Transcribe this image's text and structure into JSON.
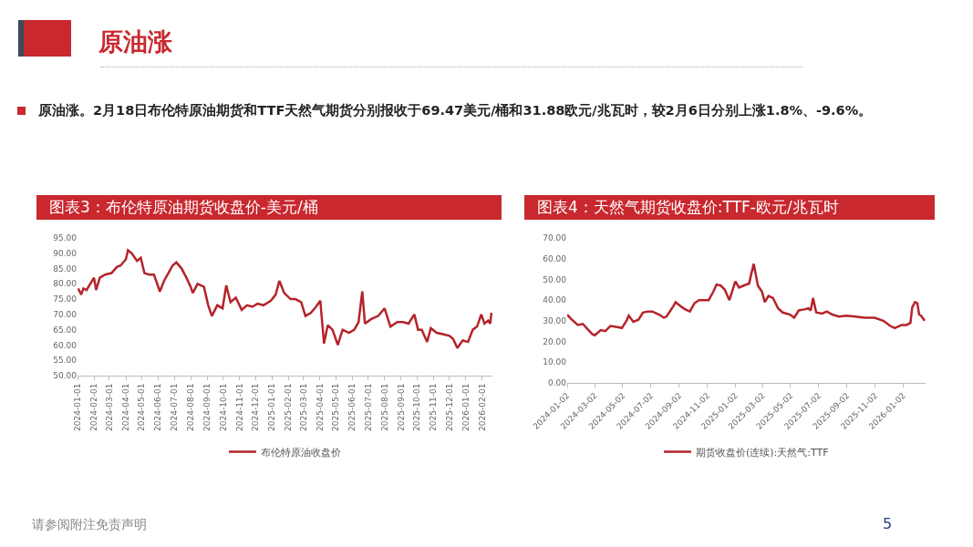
{
  "chart_data": [
    {
      "type": "line",
      "title": "图表3：布伦特原油期货收盘价-美元/桶",
      "x": [
        "2024-01-02",
        "2024-01-08",
        "2024-01-12",
        "2024-01-18",
        "2024-01-25",
        "2024-02-01",
        "2024-02-05",
        "2024-02-12",
        "2024-02-22",
        "2024-03-05",
        "2024-03-15",
        "2024-03-22",
        "2024-04-01",
        "2024-04-05",
        "2024-04-12",
        "2024-04-22",
        "2024-04-29",
        "2024-05-06",
        "2024-05-15",
        "2024-05-24",
        "2024-06-04",
        "2024-06-12",
        "2024-06-20",
        "2024-06-28",
        "2024-07-05",
        "2024-07-15",
        "2024-07-24",
        "2024-08-01",
        "2024-08-05",
        "2024-08-14",
        "2024-08-26",
        "2024-09-03",
        "2024-09-10",
        "2024-09-20",
        "2024-09-30",
        "2024-10-07",
        "2024-10-15",
        "2024-10-25",
        "2024-11-05",
        "2024-11-15",
        "2024-11-25",
        "2024-12-05",
        "2024-12-16",
        "2024-12-30",
        "2025-01-08",
        "2025-01-15",
        "2025-01-24",
        "2025-02-05",
        "2025-02-14",
        "2025-02-25",
        "2025-03-05",
        "2025-03-15",
        "2025-03-25",
        "2025-04-02",
        "2025-04-09",
        "2025-04-16",
        "2025-04-25",
        "2025-05-05",
        "2025-05-14",
        "2025-05-26",
        "2025-06-05",
        "2025-06-13",
        "2025-06-20",
        "2025-06-25",
        "2025-07-07",
        "2025-07-20",
        "2025-08-01",
        "2025-08-12",
        "2025-08-25",
        "2025-09-05",
        "2025-09-15",
        "2025-09-26",
        "2025-10-03",
        "2025-10-10",
        "2025-10-20",
        "2025-10-27",
        "2025-11-07",
        "2025-11-20",
        "2025-12-01",
        "2025-12-08",
        "2025-12-16",
        "2025-12-26",
        "2026-01-05",
        "2026-01-14",
        "2026-01-22",
        "2026-01-30",
        "2026-02-05",
        "2026-02-12",
        "2026-02-16",
        "2026-02-18"
      ],
      "series": [
        {
          "name": "布伦特原油收盘价",
          "color": "#b5232a",
          "values": [
            78.5,
            76.5,
            78.5,
            78,
            80,
            82,
            78,
            82,
            83,
            83.5,
            85.5,
            86,
            88,
            91,
            90,
            87.5,
            88.5,
            83.5,
            83,
            83,
            77.5,
            81,
            83.5,
            86,
            87,
            85,
            82,
            79,
            77,
            80,
            79,
            73,
            69.5,
            73,
            72,
            79.5,
            74,
            75.5,
            71.5,
            73,
            72.5,
            73.5,
            73,
            74.5,
            76.5,
            81,
            77,
            75,
            75,
            74,
            69.5,
            70.5,
            72.5,
            74.5,
            60.5,
            66.5,
            65,
            60,
            65,
            64,
            65,
            67.5,
            77.5,
            67,
            68.5,
            69.5,
            72,
            66,
            67.5,
            67.5,
            67,
            70,
            65,
            65,
            61,
            65.5,
            64,
            63.5,
            63,
            62,
            59,
            61.5,
            61,
            65,
            66,
            70,
            67,
            68,
            67,
            70.5
          ]
        }
      ],
      "xlim": [
        "2024-01-01",
        "2026-02-20"
      ],
      "xticks": [
        "2024-01-01",
        "2024-02-01",
        "2024-03-01",
        "2024-04-01",
        "2024-05-01",
        "2024-06-01",
        "2024-07-01",
        "2024-08-01",
        "2024-09-01",
        "2024-10-01",
        "2024-11-01",
        "2024-12-01",
        "2025-01-01",
        "2025-02-01",
        "2025-03-01",
        "2025-04-01",
        "2025-05-01",
        "2025-06-01",
        "2025-07-01",
        "2025-08-01",
        "2025-09-01",
        "2025-10-01",
        "2025-11-01",
        "2025-12-01",
        "2026-01-01",
        "2026-02-01"
      ],
      "ylim": [
        50,
        95
      ],
      "yticks": [
        {
          "value": 50,
          "label": "50.00"
        },
        {
          "value": 55,
          "label": "55.00"
        },
        {
          "value": 60,
          "label": "60.00"
        },
        {
          "value": 65,
          "label": "65.00"
        },
        {
          "value": 70,
          "label": "70.00"
        },
        {
          "value": 75,
          "label": "75.00"
        },
        {
          "value": 80,
          "label": "80.00"
        },
        {
          "value": 85,
          "label": "85.00"
        },
        {
          "value": 90,
          "label": "90.00"
        },
        {
          "value": 95,
          "label": "95.00"
        }
      ],
      "grid": false,
      "legend": "bottom"
    },
    {
      "type": "line",
      "title": "图表4：天然气期货收盘价:TTF-欧元/兆瓦时",
      "x": [
        "2024-01-02",
        "2024-01-10",
        "2024-01-25",
        "2024-02-05",
        "2024-02-15",
        "2024-02-26",
        "2024-03-02",
        "2024-03-15",
        "2024-03-25",
        "2024-04-05",
        "2024-04-20",
        "2024-04-30",
        "2024-05-10",
        "2024-05-15",
        "2024-05-25",
        "2024-06-05",
        "2024-06-15",
        "2024-06-25",
        "2024-07-05",
        "2024-07-20",
        "2024-07-30",
        "2024-08-05",
        "2024-08-20",
        "2024-08-25",
        "2024-09-05",
        "2024-09-15",
        "2024-09-25",
        "2024-10-05",
        "2024-10-15",
        "2024-10-25",
        "2024-11-05",
        "2024-11-15",
        "2024-11-22",
        "2024-12-01",
        "2024-12-10",
        "2024-12-20",
        "2025-01-02",
        "2025-01-10",
        "2025-01-20",
        "2025-02-01",
        "2025-02-05",
        "2025-02-11",
        "2025-02-20",
        "2025-03-01",
        "2025-03-07",
        "2025-03-15",
        "2025-03-25",
        "2025-04-05",
        "2025-04-15",
        "2025-05-01",
        "2025-05-10",
        "2025-05-20",
        "2025-06-01",
        "2025-06-10",
        "2025-06-15",
        "2025-06-20",
        "2025-06-27",
        "2025-07-10",
        "2025-07-20",
        "2025-08-01",
        "2025-08-15",
        "2025-09-01",
        "2025-09-20",
        "2025-10-10",
        "2025-11-01",
        "2025-11-20",
        "2025-12-05",
        "2025-12-15",
        "2025-12-30",
        "2026-01-10",
        "2026-01-18",
        "2026-01-22",
        "2026-01-28",
        "2026-02-02",
        "2026-02-06",
        "2026-02-10",
        "2026-02-18"
      ],
      "series": [
        {
          "name": "期货收盘价(连续):天然气:TTF",
          "color": "#b5232a",
          "values": [
            33,
            31,
            28,
            28.5,
            26,
            23.5,
            23,
            25.5,
            25,
            27.5,
            27,
            26.5,
            30,
            32.5,
            29.5,
            30.5,
            34,
            34.5,
            34.5,
            33,
            31.5,
            32,
            37,
            39,
            37,
            35.5,
            34.5,
            38.5,
            40,
            40,
            40,
            44,
            47.5,
            47,
            45,
            40,
            49,
            46,
            47,
            48,
            52,
            57.5,
            47,
            44,
            39,
            42,
            41,
            36,
            34,
            33,
            31.5,
            35,
            35.5,
            36,
            35,
            41,
            34,
            33.5,
            34.5,
            33,
            32,
            32.5,
            32,
            31.5,
            31.5,
            30,
            27.5,
            26.5,
            28,
            28,
            29,
            36.5,
            39,
            38.5,
            33,
            32.5,
            30
          ]
        }
      ],
      "xlim": [
        "2024-01-02",
        "2026-02-20"
      ],
      "xticks": [
        "2024-01-02",
        "2024-03-02",
        "2024-05-02",
        "2024-07-02",
        "2024-09-02",
        "2024-11-02",
        "2025-01-02",
        "2025-03-02",
        "2025-05-02",
        "2025-07-02",
        "2025-09-02",
        "2025-11-02",
        "2026-01-02"
      ],
      "ylim": [
        0,
        70
      ],
      "yticks": [
        {
          "value": 0,
          "label": "0.00"
        },
        {
          "value": 10,
          "label": "10.00"
        },
        {
          "value": 20,
          "label": "20.00"
        },
        {
          "value": 30,
          "label": "30.00"
        },
        {
          "value": 40,
          "label": "40.00"
        },
        {
          "value": 50,
          "label": "50.00"
        },
        {
          "value": 60,
          "label": "60.00"
        },
        {
          "value": 70,
          "label": "70.00"
        }
      ],
      "grid": false,
      "legend": "bottom"
    },
    {
      "type": "other",
      "title": "原油涨",
      "subtitle": "原油涨。2月18日布伦特原油期货和TTF天然气期货分别报收于69.47美元/桶和31.88欧元/兆瓦时，较2月6日分别上涨1.8%、-9.6%。",
      "annotations": [
        "请参阅附注免责声明",
        "5"
      ]
    }
  ]
}
